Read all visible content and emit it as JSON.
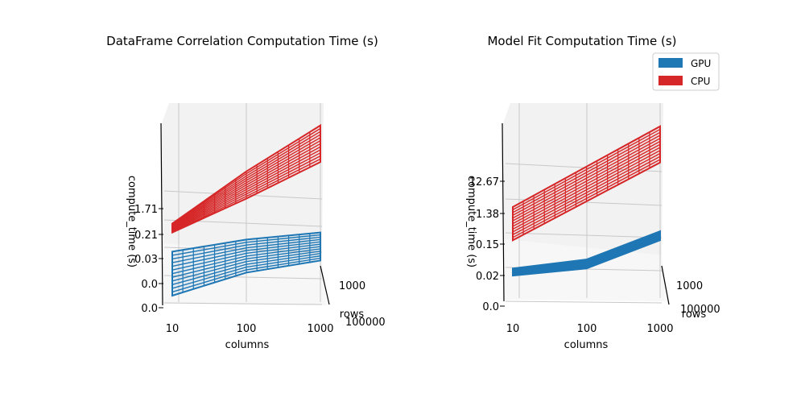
{
  "chart_data": [
    {
      "type": "surface3d",
      "title": "DataFrame Correlation Computation Time (s)",
      "xlabel": "columns",
      "ylabel": "rows",
      "zlabel": "compute_time (s)",
      "x_ticks": [
        "10",
        "100",
        "1000"
      ],
      "y_ticks": [
        "1000",
        "100000"
      ],
      "z_ticks": [
        "0.0",
        "0.0",
        "0.03",
        "0.21",
        "1.71"
      ],
      "z_scale": "log",
      "series": [
        {
          "name": "GPU",
          "color": "#1f77b4",
          "low": [
            0.0,
            0.003,
            0.006
          ],
          "high": [
            0.01,
            0.02,
            0.03
          ]
        },
        {
          "name": "CPU",
          "color": "#d62728",
          "low": [
            0.03,
            0.21,
            1.71
          ],
          "high": [
            0.05,
            1.0,
            14.0
          ]
        }
      ]
    },
    {
      "type": "surface3d",
      "title": "Model Fit Computation Time (s)",
      "xlabel": "columns",
      "ylabel": "rows",
      "zlabel": "compute_time (s)",
      "x_ticks": [
        "10",
        "100",
        "1000"
      ],
      "y_ticks": [
        "1000",
        "100000"
      ],
      "z_ticks": [
        "0.0",
        "0.02",
        "0.15",
        "1.38",
        "12.67"
      ],
      "z_scale": "log",
      "legend": {
        "position": "top-right",
        "entries": [
          "GPU",
          "CPU"
        ]
      },
      "series": [
        {
          "name": "GPU",
          "color": "#1f77b4",
          "low": [
            0.02,
            0.03,
            0.15
          ],
          "high": [
            0.03,
            0.05,
            0.25
          ]
        },
        {
          "name": "CPU",
          "color": "#d62728",
          "low": [
            0.15,
            1.38,
            12.67
          ],
          "high": [
            1.0,
            10.0,
            100.0
          ]
        }
      ]
    }
  ]
}
